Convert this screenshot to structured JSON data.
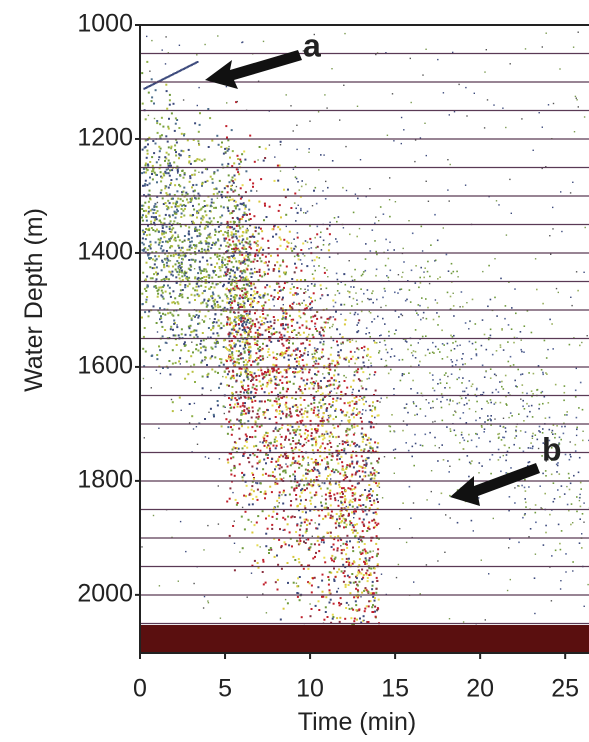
{
  "chart_data": {
    "type": "echogram",
    "xlabel": "Time (min)",
    "ylabel": "Water Depth (m)",
    "xlim": [
      0,
      26.4
    ],
    "xticks": [
      0,
      5,
      10,
      15,
      20,
      25
    ],
    "ylim": [
      1000,
      2102
    ],
    "yticks": [
      1000,
      1200,
      1400,
      1600,
      1800,
      2000
    ],
    "annotations": [
      "a",
      "b"
    ]
  }
}
